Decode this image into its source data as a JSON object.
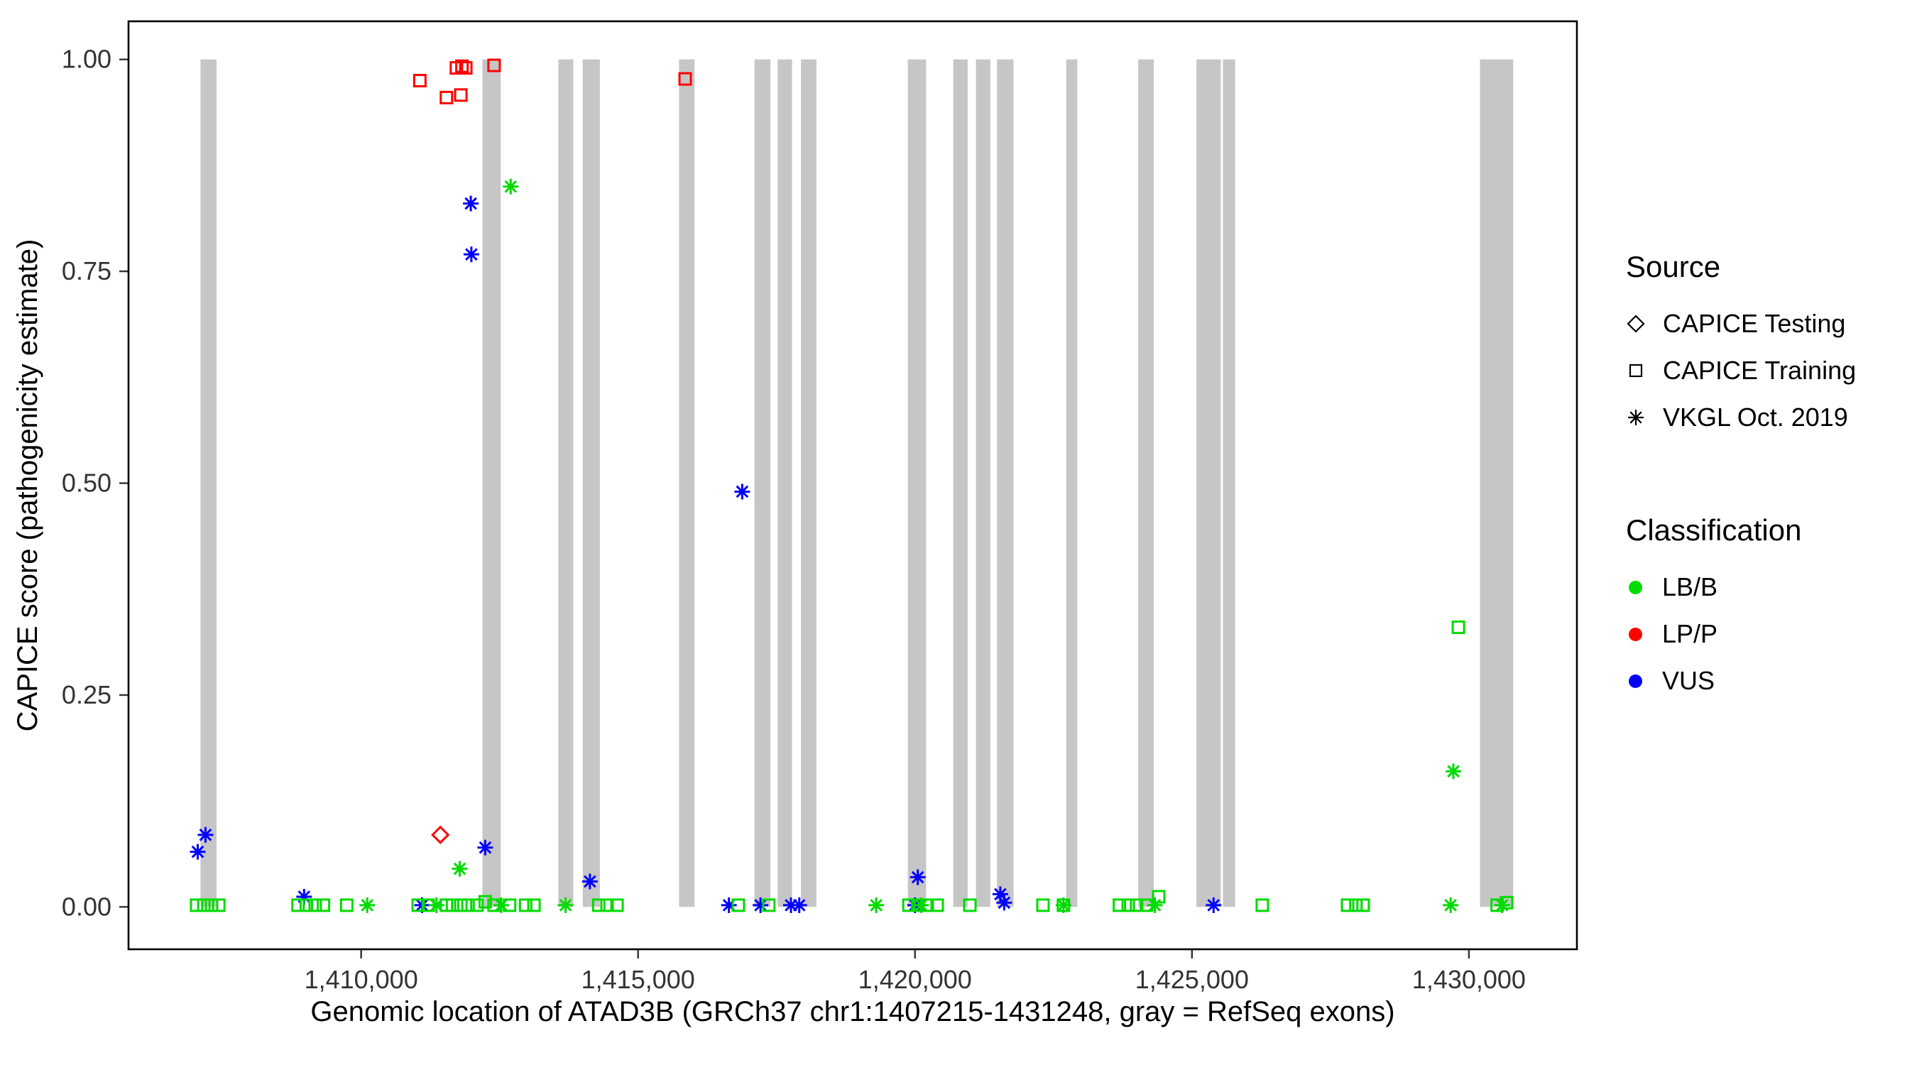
{
  "figure": {
    "xlabel": "Genomic location of ATAD3B (GRCh37 chr1:1407215-1431248, gray = RefSeq exons)",
    "ylabel": "CAPICE score (pathogenicity estimate)"
  },
  "legend": {
    "source": {
      "title": "Source",
      "items": [
        {
          "label": "CAPICE Testing",
          "shape": "diamond"
        },
        {
          "label": "CAPICE Training",
          "shape": "square"
        },
        {
          "label": "VKGL Oct. 2019",
          "shape": "asterisk"
        }
      ]
    },
    "classification": {
      "title": "Classification",
      "items": [
        {
          "label": "LB/B",
          "color": "#00DB00"
        },
        {
          "label": "LP/P",
          "color": "#FF0000"
        },
        {
          "label": "VUS",
          "color": "#0000FF"
        }
      ]
    }
  },
  "chart_data": {
    "type": "scatter",
    "title": "",
    "xlabel": "Genomic location of ATAD3B (GRCh37 chr1:1407215-1431248, gray = RefSeq exons)",
    "ylabel": "CAPICE score (pathogenicity estimate)",
    "xlim": [
      1405800,
      1431950
    ],
    "ylim": [
      -0.05,
      1.045
    ],
    "grid": false,
    "legend_position": "right",
    "x_ticks": [
      {
        "value": 1410000,
        "label": "1,410,000"
      },
      {
        "value": 1415000,
        "label": "1,415,000"
      },
      {
        "value": 1420000,
        "label": "1,420,000"
      },
      {
        "value": 1425000,
        "label": "1,425,000"
      },
      {
        "value": 1430000,
        "label": "1,430,000"
      }
    ],
    "y_ticks": [
      {
        "value": 0.0,
        "label": "0.00"
      },
      {
        "value": 0.25,
        "label": "0.25"
      },
      {
        "value": 0.5,
        "label": "0.50"
      },
      {
        "value": 0.75,
        "label": "0.75"
      },
      {
        "value": 1.0,
        "label": "1.00"
      }
    ],
    "colors": {
      "LB/B": "#00DB00",
      "LP/P": "#FF0000",
      "VUS": "#0000FF",
      "exon": "#C6C6C6"
    },
    "shapes": {
      "CAPICE Testing": "diamond",
      "CAPICE Training": "square",
      "VKGL Oct. 2019": "asterisk"
    },
    "exons": [
      [
        1407100,
        1407390
      ],
      [
        1412190,
        1412520
      ],
      [
        1413560,
        1413830
      ],
      [
        1414000,
        1414310
      ],
      [
        1415740,
        1416020
      ],
      [
        1417100,
        1417390
      ],
      [
        1417520,
        1417780
      ],
      [
        1417940,
        1418220
      ],
      [
        1419870,
        1420200
      ],
      [
        1420690,
        1420950
      ],
      [
        1421100,
        1421360
      ],
      [
        1421480,
        1421780
      ],
      [
        1422730,
        1422930
      ],
      [
        1424030,
        1424310
      ],
      [
        1425080,
        1425520
      ],
      [
        1425560,
        1425780
      ],
      [
        1430200,
        1430800
      ]
    ],
    "points": [
      {
        "x": 1411060,
        "y": 0.975,
        "source": "CAPICE Training",
        "cls": "LP/P"
      },
      {
        "x": 1411540,
        "y": 0.955,
        "source": "CAPICE Training",
        "cls": "LP/P"
      },
      {
        "x": 1411800,
        "y": 0.958,
        "source": "CAPICE Training",
        "cls": "LP/P"
      },
      {
        "x": 1411720,
        "y": 0.99,
        "source": "CAPICE Training",
        "cls": "LP/P"
      },
      {
        "x": 1411820,
        "y": 0.992,
        "source": "CAPICE Training",
        "cls": "LP/P"
      },
      {
        "x": 1411890,
        "y": 0.99,
        "source": "CAPICE Training",
        "cls": "LP/P"
      },
      {
        "x": 1412400,
        "y": 0.993,
        "source": "CAPICE Training",
        "cls": "LP/P"
      },
      {
        "x": 1415850,
        "y": 0.977,
        "source": "CAPICE Training",
        "cls": "LP/P"
      },
      {
        "x": 1411430,
        "y": 0.085,
        "source": "CAPICE Testing",
        "cls": "LP/P"
      },
      {
        "x": 1411980,
        "y": 0.83,
        "source": "VKGL Oct. 2019",
        "cls": "VUS"
      },
      {
        "x": 1411990,
        "y": 0.77,
        "source": "VKGL Oct. 2019",
        "cls": "VUS"
      },
      {
        "x": 1416880,
        "y": 0.49,
        "source": "VKGL Oct. 2019",
        "cls": "VUS"
      },
      {
        "x": 1407190,
        "y": 0.085,
        "source": "VKGL Oct. 2019",
        "cls": "VUS"
      },
      {
        "x": 1407050,
        "y": 0.065,
        "source": "VKGL Oct. 2019",
        "cls": "VUS"
      },
      {
        "x": 1412240,
        "y": 0.07,
        "source": "VKGL Oct. 2019",
        "cls": "VUS"
      },
      {
        "x": 1414130,
        "y": 0.03,
        "source": "VKGL Oct. 2019",
        "cls": "VUS"
      },
      {
        "x": 1420050,
        "y": 0.035,
        "source": "VKGL Oct. 2019",
        "cls": "VUS"
      },
      {
        "x": 1408970,
        "y": 0.012,
        "source": "VKGL Oct. 2019",
        "cls": "VUS"
      },
      {
        "x": 1421540,
        "y": 0.015,
        "source": "VKGL Oct. 2019",
        "cls": "VUS"
      },
      {
        "x": 1421610,
        "y": 0.005,
        "source": "VKGL Oct. 2019",
        "cls": "VUS"
      },
      {
        "x": 1411100,
        "y": 0.002,
        "source": "VKGL Oct. 2019",
        "cls": "VUS"
      },
      {
        "x": 1416640,
        "y": 0.002,
        "source": "VKGL Oct. 2019",
        "cls": "VUS"
      },
      {
        "x": 1417210,
        "y": 0.002,
        "source": "VKGL Oct. 2019",
        "cls": "VUS"
      },
      {
        "x": 1417760,
        "y": 0.002,
        "source": "VKGL Oct. 2019",
        "cls": "VUS"
      },
      {
        "x": 1417910,
        "y": 0.002,
        "source": "VKGL Oct. 2019",
        "cls": "VUS"
      },
      {
        "x": 1420000,
        "y": 0.002,
        "source": "VKGL Oct. 2019",
        "cls": "VUS"
      },
      {
        "x": 1425390,
        "y": 0.002,
        "source": "VKGL Oct. 2019",
        "cls": "VUS"
      },
      {
        "x": 1412700,
        "y": 0.85,
        "source": "VKGL Oct. 2019",
        "cls": "LB/B"
      },
      {
        "x": 1411780,
        "y": 0.045,
        "source": "VKGL Oct. 2019",
        "cls": "LB/B"
      },
      {
        "x": 1429720,
        "y": 0.16,
        "source": "VKGL Oct. 2019",
        "cls": "LB/B"
      },
      {
        "x": 1410110,
        "y": 0.002,
        "source": "VKGL Oct. 2019",
        "cls": "LB/B"
      },
      {
        "x": 1411360,
        "y": 0.002,
        "source": "VKGL Oct. 2019",
        "cls": "LB/B"
      },
      {
        "x": 1412530,
        "y": 0.002,
        "source": "VKGL Oct. 2019",
        "cls": "LB/B"
      },
      {
        "x": 1413690,
        "y": 0.002,
        "source": "VKGL Oct. 2019",
        "cls": "LB/B"
      },
      {
        "x": 1419300,
        "y": 0.002,
        "source": "VKGL Oct. 2019",
        "cls": "LB/B"
      },
      {
        "x": 1420110,
        "y": 0.002,
        "source": "VKGL Oct. 2019",
        "cls": "LB/B"
      },
      {
        "x": 1422680,
        "y": 0.002,
        "source": "VKGL Oct. 2019",
        "cls": "LB/B"
      },
      {
        "x": 1424330,
        "y": 0.002,
        "source": "VKGL Oct. 2019",
        "cls": "LB/B"
      },
      {
        "x": 1429670,
        "y": 0.002,
        "source": "VKGL Oct. 2019",
        "cls": "LB/B"
      },
      {
        "x": 1430600,
        "y": 0.002,
        "source": "VKGL Oct. 2019",
        "cls": "LB/B"
      },
      {
        "x": 1429810,
        "y": 0.33,
        "source": "CAPICE Training",
        "cls": "LB/B"
      },
      {
        "x": 1424400,
        "y": 0.012,
        "source": "CAPICE Training",
        "cls": "LB/B"
      },
      {
        "x": 1412240,
        "y": 0.006,
        "source": "CAPICE Training",
        "cls": "LB/B"
      },
      {
        "x": 1430680,
        "y": 0.005,
        "source": "CAPICE Training",
        "cls": "LB/B"
      },
      {
        "x": 1407030,
        "y": 0.002,
        "source": "CAPICE Training",
        "cls": "LB/B"
      },
      {
        "x": 1407160,
        "y": 0.002,
        "source": "CAPICE Training",
        "cls": "LB/B"
      },
      {
        "x": 1407300,
        "y": 0.002,
        "source": "CAPICE Training",
        "cls": "LB/B"
      },
      {
        "x": 1407430,
        "y": 0.002,
        "source": "CAPICE Training",
        "cls": "LB/B"
      },
      {
        "x": 1408860,
        "y": 0.002,
        "source": "CAPICE Training",
        "cls": "LB/B"
      },
      {
        "x": 1409010,
        "y": 0.002,
        "source": "CAPICE Training",
        "cls": "LB/B"
      },
      {
        "x": 1409170,
        "y": 0.002,
        "source": "CAPICE Training",
        "cls": "LB/B"
      },
      {
        "x": 1409320,
        "y": 0.002,
        "source": "CAPICE Training",
        "cls": "LB/B"
      },
      {
        "x": 1409740,
        "y": 0.002,
        "source": "CAPICE Training",
        "cls": "LB/B"
      },
      {
        "x": 1411030,
        "y": 0.002,
        "source": "CAPICE Training",
        "cls": "LB/B"
      },
      {
        "x": 1411210,
        "y": 0.002,
        "source": "CAPICE Training",
        "cls": "LB/B"
      },
      {
        "x": 1411540,
        "y": 0.002,
        "source": "CAPICE Training",
        "cls": "LB/B"
      },
      {
        "x": 1411650,
        "y": 0.002,
        "source": "CAPICE Training",
        "cls": "LB/B"
      },
      {
        "x": 1411800,
        "y": 0.002,
        "source": "CAPICE Training",
        "cls": "LB/B"
      },
      {
        "x": 1411930,
        "y": 0.002,
        "source": "CAPICE Training",
        "cls": "LB/B"
      },
      {
        "x": 1412090,
        "y": 0.002,
        "source": "CAPICE Training",
        "cls": "LB/B"
      },
      {
        "x": 1412400,
        "y": 0.002,
        "source": "CAPICE Training",
        "cls": "LB/B"
      },
      {
        "x": 1412680,
        "y": 0.002,
        "source": "CAPICE Training",
        "cls": "LB/B"
      },
      {
        "x": 1412970,
        "y": 0.002,
        "source": "CAPICE Training",
        "cls": "LB/B"
      },
      {
        "x": 1413120,
        "y": 0.002,
        "source": "CAPICE Training",
        "cls": "LB/B"
      },
      {
        "x": 1414290,
        "y": 0.002,
        "source": "CAPICE Training",
        "cls": "LB/B"
      },
      {
        "x": 1414440,
        "y": 0.002,
        "source": "CAPICE Training",
        "cls": "LB/B"
      },
      {
        "x": 1414620,
        "y": 0.002,
        "source": "CAPICE Training",
        "cls": "LB/B"
      },
      {
        "x": 1416810,
        "y": 0.002,
        "source": "CAPICE Training",
        "cls": "LB/B"
      },
      {
        "x": 1417360,
        "y": 0.002,
        "source": "CAPICE Training",
        "cls": "LB/B"
      },
      {
        "x": 1419890,
        "y": 0.002,
        "source": "CAPICE Training",
        "cls": "LB/B"
      },
      {
        "x": 1420050,
        "y": 0.002,
        "source": "CAPICE Training",
        "cls": "LB/B"
      },
      {
        "x": 1420220,
        "y": 0.002,
        "source": "CAPICE Training",
        "cls": "LB/B"
      },
      {
        "x": 1420400,
        "y": 0.002,
        "source": "CAPICE Training",
        "cls": "LB/B"
      },
      {
        "x": 1420990,
        "y": 0.002,
        "source": "CAPICE Training",
        "cls": "LB/B"
      },
      {
        "x": 1422310,
        "y": 0.002,
        "source": "CAPICE Training",
        "cls": "LB/B"
      },
      {
        "x": 1422680,
        "y": 0.002,
        "source": "CAPICE Training",
        "cls": "LB/B"
      },
      {
        "x": 1423690,
        "y": 0.002,
        "source": "CAPICE Training",
        "cls": "LB/B"
      },
      {
        "x": 1423850,
        "y": 0.002,
        "source": "CAPICE Training",
        "cls": "LB/B"
      },
      {
        "x": 1424000,
        "y": 0.002,
        "source": "CAPICE Training",
        "cls": "LB/B"
      },
      {
        "x": 1424180,
        "y": 0.002,
        "source": "CAPICE Training",
        "cls": "LB/B"
      },
      {
        "x": 1426270,
        "y": 0.002,
        "source": "CAPICE Training",
        "cls": "LB/B"
      },
      {
        "x": 1427810,
        "y": 0.002,
        "source": "CAPICE Training",
        "cls": "LB/B"
      },
      {
        "x": 1427960,
        "y": 0.002,
        "source": "CAPICE Training",
        "cls": "LB/B"
      },
      {
        "x": 1428090,
        "y": 0.002,
        "source": "CAPICE Training",
        "cls": "LB/B"
      },
      {
        "x": 1430510,
        "y": 0.002,
        "source": "CAPICE Training",
        "cls": "LB/B"
      }
    ]
  }
}
